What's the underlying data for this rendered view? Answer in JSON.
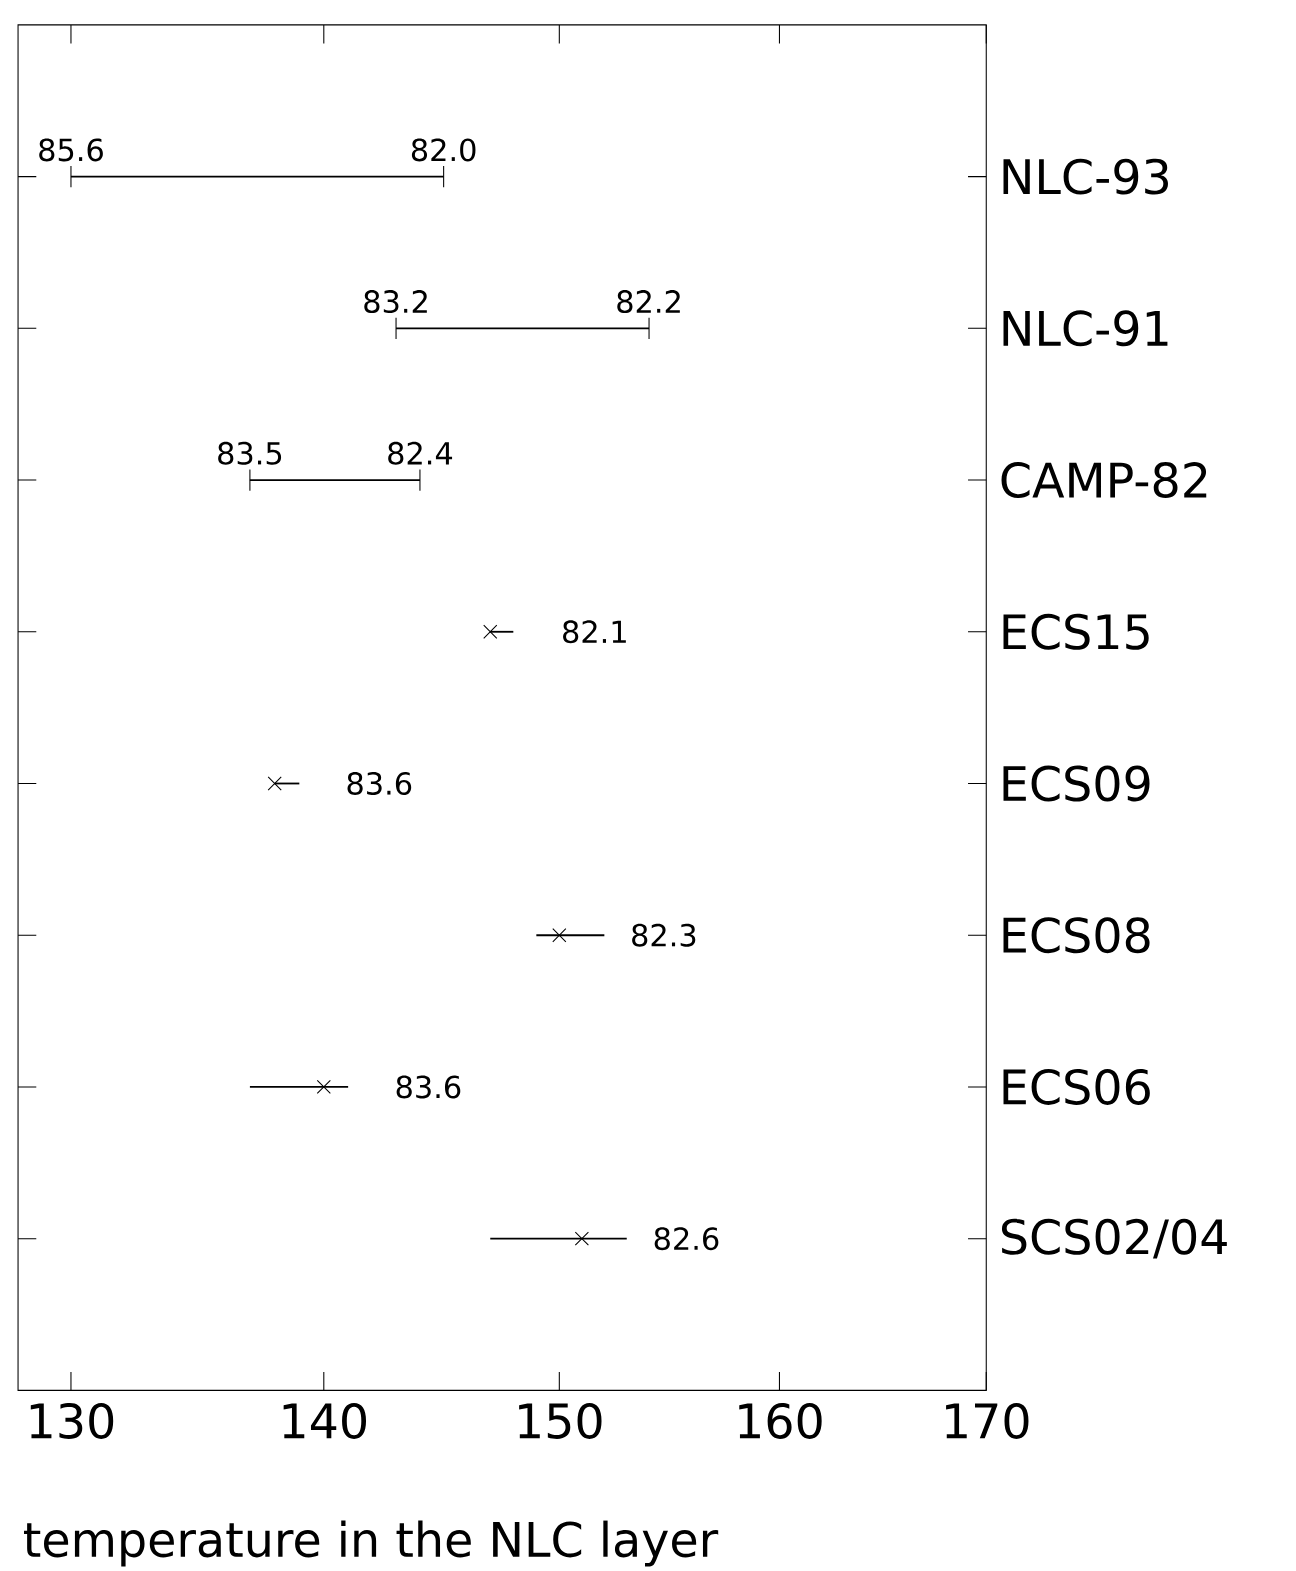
{
  "chart_data": {
    "type": "scatter",
    "orientation": "horizontal",
    "log": "x",
    "categories": [
      "NLC-93",
      "NLC-91",
      "CAMP-82",
      "ECS15",
      "ECS09",
      "ECS08",
      "ECS06",
      "SCS02/04"
    ],
    "series": [
      {
        "type": "bar",
        "color": "#000000",
        "base": [
          130,
          143,
          137,
          null,
          null,
          null,
          null,
          null
        ],
        "values": [
          15,
          11,
          7,
          null,
          null,
          null,
          null,
          null
        ]
      },
      {
        "marker": "cross",
        "color": "#000000",
        "values": [
          null,
          null,
          null,
          147,
          138,
          150,
          140,
          151
        ]
      },
      {
        "type": "bar",
        "color": "#000000",
        "base": [
          null,
          null,
          null,
          147,
          138,
          149,
          137,
          147
        ],
        "values": [
          null,
          null,
          null,
          1,
          1,
          3,
          4,
          6
        ]
      }
    ],
    "xlim": [
      128,
      170
    ],
    "xticks": [
      130,
      140,
      150,
      160,
      170
    ],
    "xlabel": "temperature in the NLC layer",
    "annotations": [
      {
        "text": "85.6",
        "x": 130,
        "y": "NLC-93"
      },
      {
        "text": "82.0",
        "x": 145,
        "y": "NLC-93"
      },
      {
        "text": "83.2",
        "x": 143,
        "y": "NLC-91"
      },
      {
        "text": "82.2",
        "x": 154,
        "y": "NLC-91"
      },
      {
        "text": "83.5",
        "x": 137,
        "y": "CAMP-82"
      },
      {
        "text": "82.4",
        "x": 144,
        "y": "CAMP-82"
      },
      {
        "text": "82.1",
        "x": 147,
        "y": "ECS15"
      },
      {
        "text": "83.6",
        "x": 138,
        "y": "ECS09"
      },
      {
        "text": "82.3",
        "x": 150,
        "y": "ECS08"
      },
      {
        "text": "83.6",
        "x": 140,
        "y": "ECS06"
      },
      {
        "text": "82.6",
        "x": 151,
        "y": "SCS02/04"
      }
    ]
  }
}
